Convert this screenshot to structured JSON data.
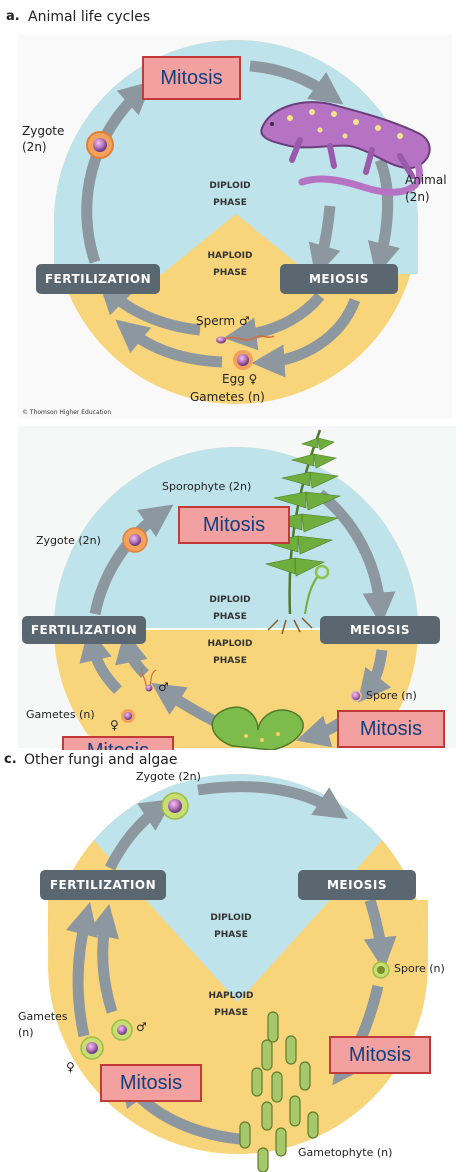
{
  "panel_a": {
    "heading_letter": "a.",
    "heading": "Animal life cycles",
    "mitosis": "Mitosis",
    "zygote": "Zygote",
    "zygote_ploidy": "(2n)",
    "animal": "Animal",
    "animal_ploidy": "(2n)",
    "diploid_1": "DIPLOID",
    "diploid_2": "PHASE",
    "haploid_1": "HAPLOID",
    "haploid_2": "PHASE",
    "fertilization": "FERTILIZATION",
    "meiosis": "MEIOSIS",
    "sperm": "Sperm ♂",
    "egg": "Egg ♀",
    "gametes": "Gametes (n)",
    "copyright": "© Thomson Higher Education"
  },
  "panel_b": {
    "sporophyte": "Sporophyte (2n)",
    "zygote": "Zygote (2n)",
    "mitosis_top": "Mitosis",
    "diploid_1": "DIPLOID",
    "diploid_2": "PHASE",
    "haploid_1": "HAPLOID",
    "haploid_2": "PHASE",
    "fertilization": "FERTILIZATION",
    "meiosis": "MEIOSIS",
    "spore": "Spore (n)",
    "gametes": "Gametes (n)",
    "male_symbol": "♂",
    "female_symbol": "♀",
    "mitosis_right": "Mitosis",
    "mitosis_cut": "Mitosis"
  },
  "panel_c": {
    "heading_letter": "c.",
    "heading": "Other fungi and algae",
    "zygote": "Zygote (2n)",
    "fertilization": "FERTILIZATION",
    "meiosis": "MEIOSIS",
    "diploid_1": "DIPLOID",
    "diploid_2": "PHASE",
    "haploid_1": "HAPLOID",
    "haploid_2": "PHASE",
    "spore": "Spore (n)",
    "gametes": "Gametes",
    "gametes_n": "(n)",
    "male_symbol": "♂",
    "female_symbol": "♀",
    "mitosis_right": "Mitosis",
    "mitosis_bottom": "Mitosis",
    "gametophyte": "Gametophyte (n)"
  },
  "colors": {
    "diploid": "#bfe3ea",
    "haploid": "#f8d57a",
    "arrow": "#8d979f",
    "pill": "#5b6770",
    "mitosis_fill": "#f2a0a0",
    "mitosis_border": "#c23a3a",
    "mitosis_text": "#10407e"
  }
}
